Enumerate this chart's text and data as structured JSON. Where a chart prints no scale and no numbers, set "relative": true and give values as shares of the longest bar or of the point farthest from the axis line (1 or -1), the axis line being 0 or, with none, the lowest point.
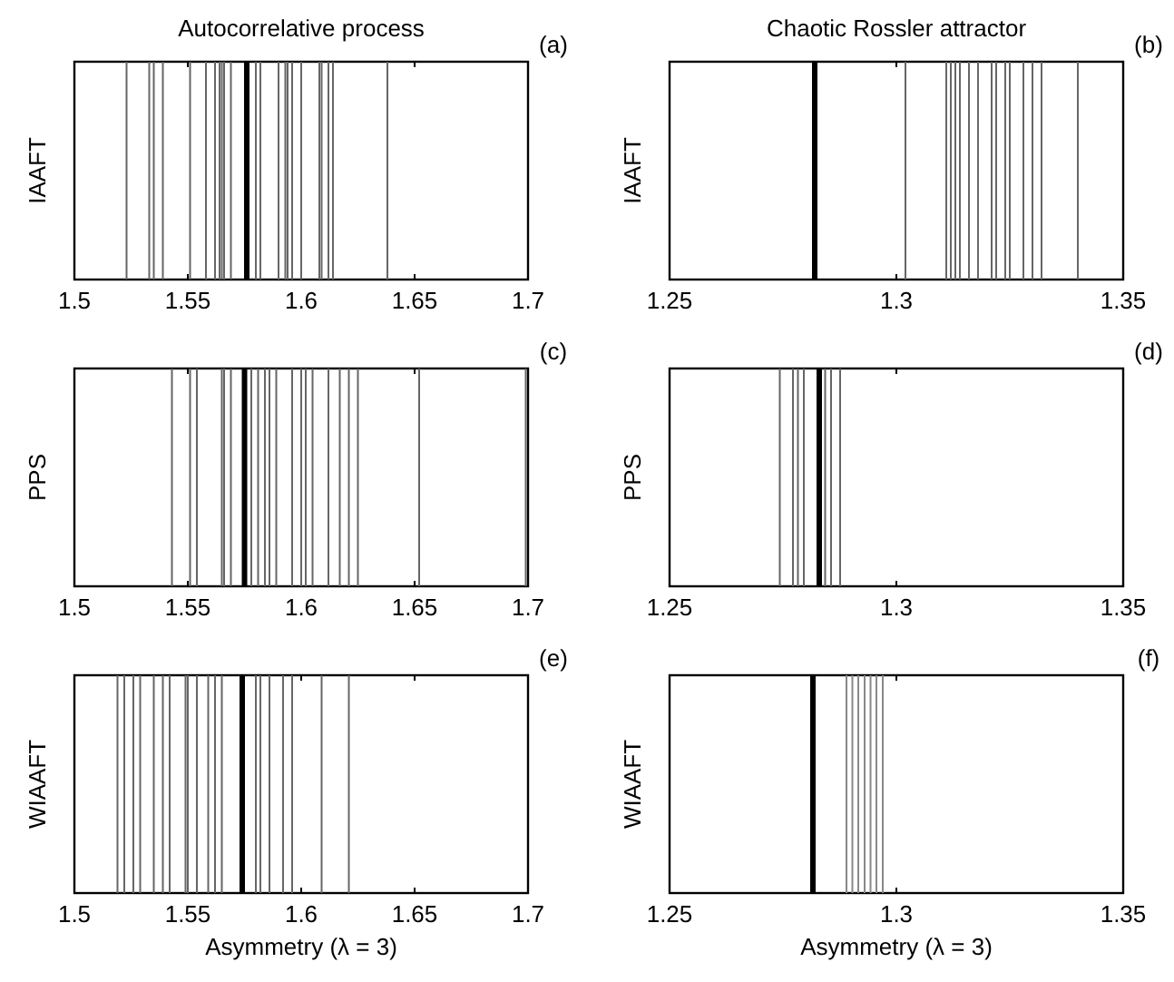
{
  "chart_data": [
    {
      "type": "bar",
      "title": "Autocorrelative process",
      "ylabel": "IAAFT",
      "annotations": [
        "(a)"
      ],
      "relative": true,
      "tick_labels": "x",
      "xlim": [
        1.5,
        1.7
      ],
      "xticks": [
        1.5,
        1.55,
        1.6,
        1.65,
        1.7
      ],
      "series": [
        {
          "color": "#666666",
          "x": [
            1.523,
            1.533,
            1.535,
            1.539,
            1.551,
            1.558,
            1.562,
            1.564,
            1.565,
            1.566,
            1.569,
            1.58,
            1.582,
            1.59,
            1.593,
            1.594,
            1.596,
            1.6,
            1.608,
            1.609,
            1.612,
            1.614,
            1.638
          ],
          "values": [
            1,
            1,
            1,
            1,
            1,
            1,
            1,
            1,
            1,
            1,
            1,
            1,
            1,
            1,
            1,
            1,
            1,
            1,
            1,
            1,
            1,
            1,
            1
          ]
        },
        {
          "color": "#000000",
          "x": [
            1.576
          ],
          "values": [
            1
          ]
        }
      ]
    },
    {
      "type": "bar",
      "title": "Chaotic Rossler attractor",
      "ylabel": "IAAFT",
      "annotations": [
        "(b)"
      ],
      "relative": true,
      "tick_labels": "x",
      "xlim": [
        1.25,
        1.35
      ],
      "xticks": [
        1.25,
        1.3,
        1.35
      ],
      "series": [
        {
          "color": "#666666",
          "x": [
            1.302,
            1.311,
            1.312,
            1.313,
            1.314,
            1.316,
            1.318,
            1.321,
            1.322,
            1.324,
            1.325,
            1.328,
            1.33,
            1.332,
            1.34
          ],
          "values": [
            1,
            1,
            1,
            1,
            1,
            1,
            1,
            1,
            1,
            1,
            1,
            1,
            1,
            1,
            1
          ]
        },
        {
          "color": "#000000",
          "x": [
            1.282
          ],
          "values": [
            1
          ]
        }
      ]
    },
    {
      "type": "bar",
      "ylabel": "PPS",
      "annotations": [
        "(c)"
      ],
      "relative": true,
      "tick_labels": "x",
      "xlim": [
        1.5,
        1.7
      ],
      "xticks": [
        1.5,
        1.55,
        1.6,
        1.65,
        1.7
      ],
      "series": [
        {
          "color": "#666666",
          "x": [
            1.543,
            1.551,
            1.554,
            1.565,
            1.566,
            1.569,
            1.578,
            1.581,
            1.584,
            1.586,
            1.589,
            1.596,
            1.6,
            1.602,
            1.605,
            1.612,
            1.617,
            1.621,
            1.625,
            1.652,
            1.699
          ],
          "values": [
            1,
            1,
            1,
            1,
            1,
            1,
            1,
            1,
            1,
            1,
            1,
            1,
            1,
            1,
            1,
            1,
            1,
            1,
            1,
            1,
            1
          ]
        },
        {
          "color": "#000000",
          "x": [
            1.575
          ],
          "values": [
            1
          ]
        }
      ]
    },
    {
      "type": "bar",
      "ylabel": "PPS",
      "annotations": [
        "(d)"
      ],
      "relative": true,
      "tick_labels": "x",
      "xlim": [
        1.25,
        1.35
      ],
      "xticks": [
        1.25,
        1.3,
        1.35
      ],
      "series": [
        {
          "color": "#666666",
          "x": [
            1.2743,
            1.2772,
            1.2783,
            1.2796,
            1.2843,
            1.2856,
            1.2876
          ],
          "values": [
            1,
            1,
            1,
            1,
            1,
            1,
            1
          ]
        },
        {
          "color": "#000000",
          "x": [
            1.283
          ],
          "values": [
            1
          ]
        }
      ]
    },
    {
      "type": "bar",
      "xlabel": "Asymmetry (λ = 3)",
      "ylabel": "WIAAFT",
      "annotations": [
        "(e)"
      ],
      "relative": true,
      "tick_labels": "x",
      "xlim": [
        1.5,
        1.7
      ],
      "xticks": [
        1.5,
        1.55,
        1.6,
        1.65,
        1.7
      ],
      "series": [
        {
          "color": "#666666",
          "x": [
            1.519,
            1.522,
            1.526,
            1.529,
            1.535,
            1.539,
            1.542,
            1.549,
            1.55,
            1.554,
            1.559,
            1.562,
            1.565,
            1.58,
            1.582,
            1.586,
            1.592,
            1.596,
            1.609,
            1.621
          ],
          "values": [
            1,
            1,
            1,
            1,
            1,
            1,
            1,
            1,
            1,
            1,
            1,
            1,
            1,
            1,
            1,
            1,
            1,
            1,
            1,
            1
          ]
        },
        {
          "color": "#000000",
          "x": [
            1.574
          ],
          "values": [
            1
          ]
        }
      ]
    },
    {
      "type": "bar",
      "xlabel": "Asymmetry (λ = 3)",
      "ylabel": "WIAAFT",
      "annotations": [
        "(f)"
      ],
      "relative": true,
      "tick_labels": "x",
      "xlim": [
        1.25,
        1.35
      ],
      "xticks": [
        1.25,
        1.3,
        1.35
      ],
      "series": [
        {
          "color": "#888888",
          "x": [
            1.289,
            1.2903,
            1.2916,
            1.293,
            1.2943,
            1.2956,
            1.297
          ],
          "values": [
            1,
            1,
            1,
            1,
            1,
            1,
            1
          ]
        },
        {
          "color": "#000000",
          "x": [
            1.2816
          ],
          "values": [
            1
          ]
        }
      ]
    }
  ]
}
